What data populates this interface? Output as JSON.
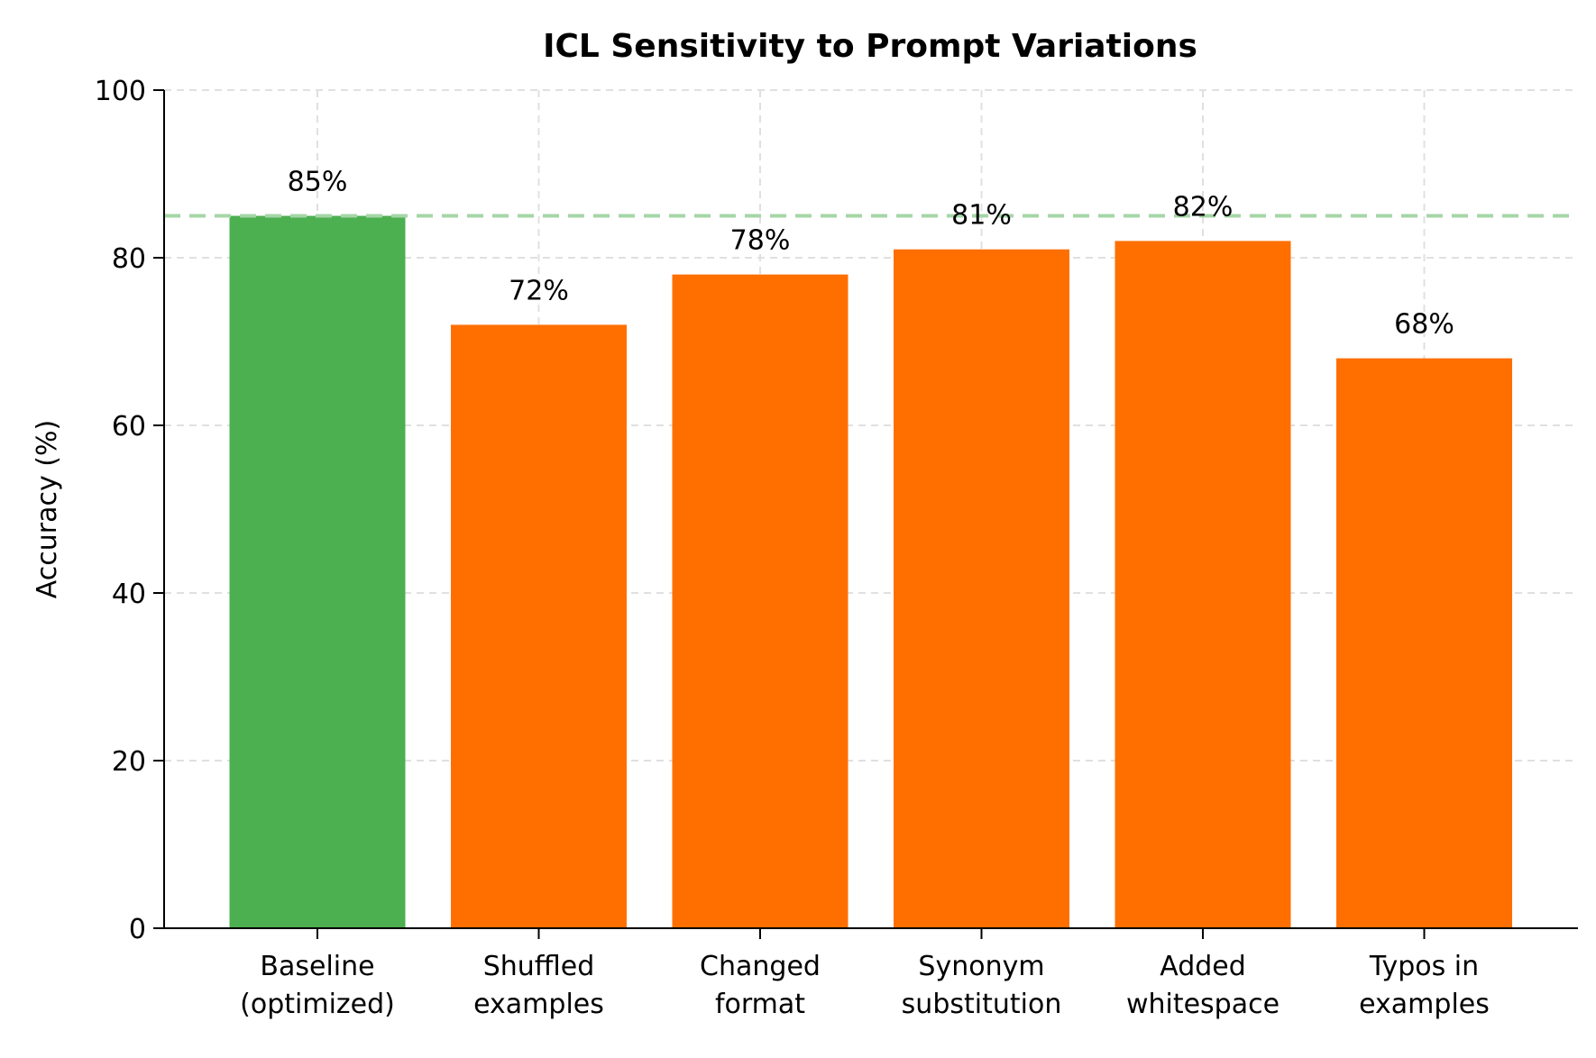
{
  "chart_data": {
    "type": "bar",
    "title": "ICL Sensitivity to Prompt Variations",
    "xlabel": "",
    "ylabel": "Accuracy (%)",
    "ylim": [
      0,
      100
    ],
    "yticks": [
      "0",
      "20",
      "40",
      "60",
      "80",
      "100"
    ],
    "grid": true,
    "categories": [
      [
        "Baseline",
        "(optimized)"
      ],
      [
        "Shuffled",
        "examples"
      ],
      [
        "Changed",
        "format"
      ],
      [
        "Synonym",
        "substitution"
      ],
      [
        "Added",
        "whitespace"
      ],
      [
        "Typos in",
        "examples"
      ]
    ],
    "values": [
      85,
      72,
      78,
      81,
      82,
      68
    ],
    "data_labels": [
      "85%",
      "72%",
      "78%",
      "81%",
      "82%",
      "68%"
    ],
    "colors": [
      "#4caf50",
      "#ff6f00",
      "#ff6f00",
      "#ff6f00",
      "#ff6f00",
      "#ff6f00"
    ],
    "reference_line": {
      "value": 85,
      "color": "#a5d6a7",
      "style": "dashed"
    }
  }
}
